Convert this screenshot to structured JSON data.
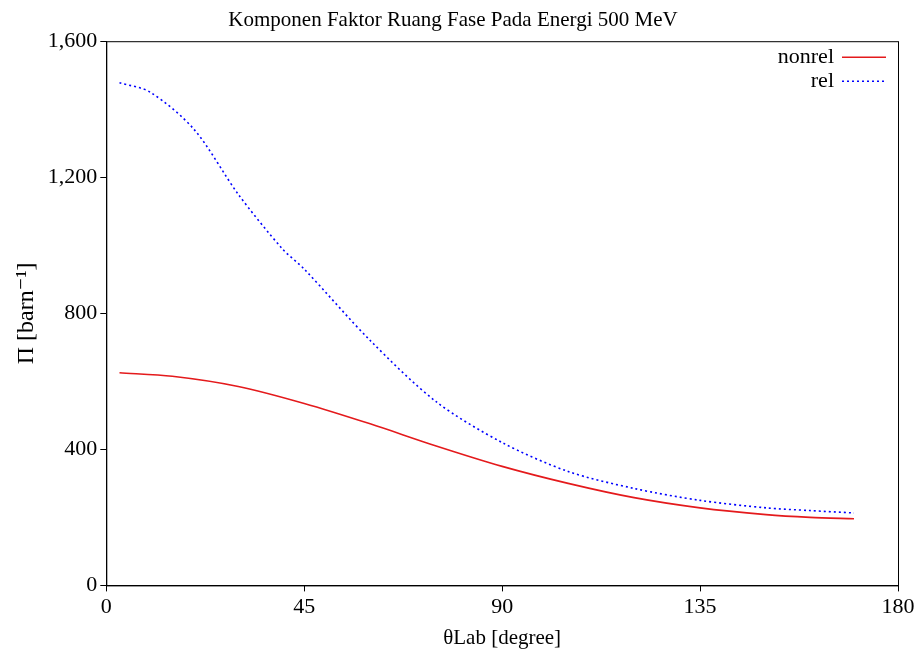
{
  "chart_data": {
    "type": "line",
    "title": "Komponen Faktor Ruang Fase Pada Energi 500 MeV",
    "x_label": "θLab [degree]",
    "y_label": "Π [barn⁻¹]",
    "series": [
      {
        "name": "nonrel",
        "color": "#e41a1c",
        "line_style": "solid",
        "marker": "none",
        "x": [
          3,
          15,
          30,
          45,
          60,
          75,
          90,
          105,
          120,
          135,
          150,
          160,
          170
        ],
        "values": [
          625,
          615,
          585,
          535,
          475,
          410,
          350,
          300,
          258,
          228,
          208,
          200,
          196
        ]
      },
      {
        "name": "rel",
        "color": "#0000ff",
        "line_style": "dotted",
        "marker": "none",
        "x": [
          3,
          10,
          20,
          30,
          40,
          45,
          60,
          75,
          90,
          105,
          120,
          135,
          150,
          160,
          170
        ],
        "values": [
          1478,
          1450,
          1340,
          1150,
          990,
          930,
          720,
          540,
          420,
          335,
          285,
          250,
          228,
          220,
          213
        ]
      }
    ],
    "xlim": [
      0,
      180
    ],
    "xticks": [
      0,
      45,
      90,
      135,
      180
    ],
    "ylim": [
      0,
      1600
    ],
    "yticks": [
      0,
      400,
      800,
      1200,
      1600
    ],
    "grid": false,
    "legend": "upper right"
  }
}
